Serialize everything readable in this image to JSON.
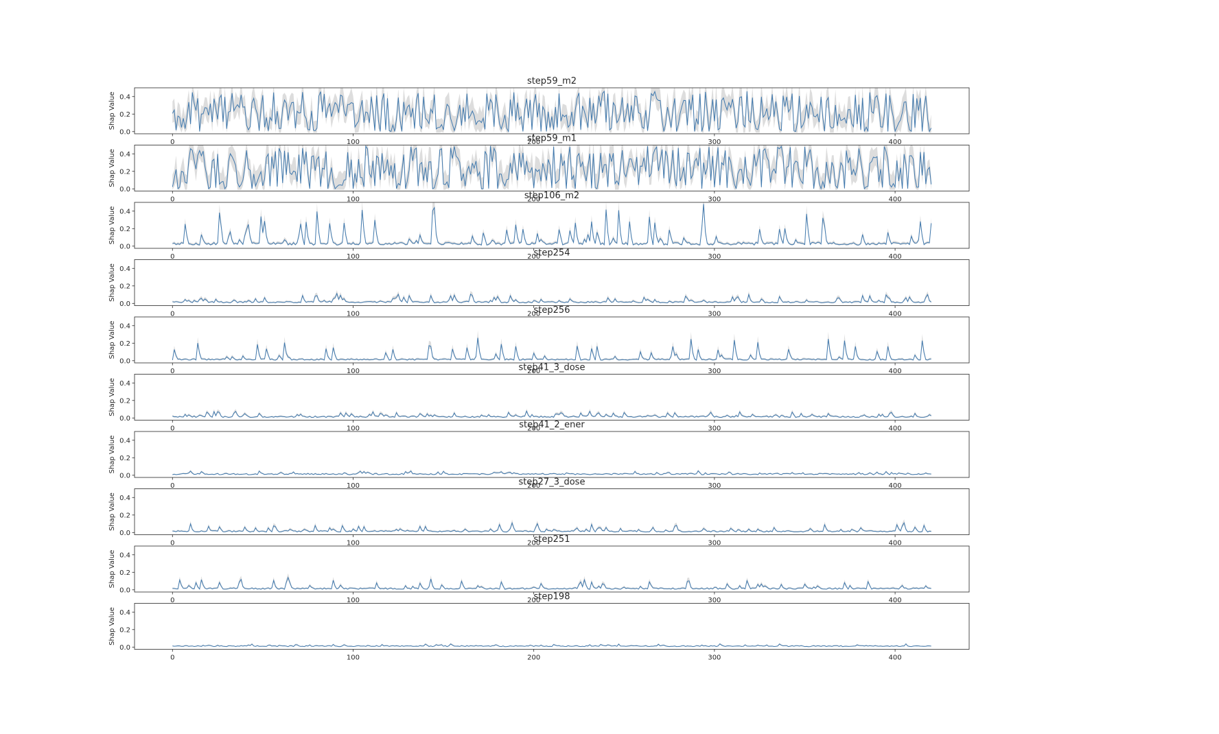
{
  "figure": {
    "background": "#ffffff",
    "shared_ylabel": "Shap Value",
    "layout_note": "10 vertically stacked line subplots; each subplot title overlaps the x tick labels of the subplot above"
  },
  "chart_data": [
    {
      "type": "line",
      "title": "step59_m2",
      "xlabel": "",
      "ylabel": "Shap Value",
      "x_tick_labels": [
        "0",
        "100",
        "200",
        "300",
        "400"
      ],
      "y_tick_labels": [
        "0.0",
        "0.2",
        "0.4"
      ],
      "x_ticks": [
        0,
        100,
        200,
        300,
        400
      ],
      "y_ticks": [
        0.0,
        0.2,
        0.4
      ],
      "xlim": [
        -21,
        441
      ],
      "ylim": [
        -0.025,
        0.5
      ],
      "n_points": 421,
      "line_color": "#4079ae",
      "band_color": "#d9d9d9",
      "grid": false,
      "legend": null,
      "observed": {
        "baseline": 0.0,
        "typical_level": 0.2,
        "max": 0.47,
        "band_half_width": 0.12,
        "character": "dense high-frequency oscillation touching 0 often"
      },
      "gen": {
        "mode": "dense",
        "amp": 0.47,
        "base": 0.0,
        "band": 0.105,
        "seed": 11
      }
    },
    {
      "type": "line",
      "title": "step59_m1",
      "xlabel": "",
      "ylabel": "Shap Value",
      "x_tick_labels": [
        "0",
        "100",
        "200",
        "300",
        "400"
      ],
      "y_tick_labels": [
        "0.0",
        "0.2",
        "0.4"
      ],
      "x_ticks": [
        0,
        100,
        200,
        300,
        400
      ],
      "y_ticks": [
        0.0,
        0.2,
        0.4
      ],
      "xlim": [
        -21,
        441
      ],
      "ylim": [
        -0.025,
        0.5
      ],
      "n_points": 421,
      "line_color": "#4079ae",
      "band_color": "#d9d9d9",
      "grid": false,
      "legend": null,
      "observed": {
        "baseline": 0.0,
        "typical_level": 0.2,
        "max": 0.5,
        "band_half_width": 0.12,
        "character": "dense high-frequency oscillation touching 0 often"
      },
      "gen": {
        "mode": "dense",
        "amp": 0.5,
        "base": 0.0,
        "band": 0.105,
        "seed": 23
      }
    },
    {
      "type": "line",
      "title": "step106_m2",
      "xlabel": "",
      "ylabel": "Shap Value",
      "x_tick_labels": [
        "0",
        "100",
        "200",
        "300",
        "400"
      ],
      "y_tick_labels": [
        "0.0",
        "0.2",
        "0.4"
      ],
      "x_ticks": [
        0,
        100,
        200,
        300,
        400
      ],
      "y_ticks": [
        0.0,
        0.2,
        0.4
      ],
      "xlim": [
        -21,
        441
      ],
      "ylim": [
        -0.025,
        0.5
      ],
      "n_points": 421,
      "line_color": "#4079ae",
      "band_color": "#d9d9d9",
      "grid": false,
      "legend": null,
      "observed": {
        "baseline": 0.03,
        "typical_level": 0.04,
        "max": 0.45,
        "band_half_width": 0.02,
        "character": "low baseline with frequent tall narrow spikes"
      },
      "gen": {
        "mode": "spike",
        "base": 0.028,
        "spike_prob": 0.17,
        "spike_lo": 0.04,
        "spike_hi": 0.4,
        "band": 0.01,
        "band_v": 0.22,
        "seed": 37
      }
    },
    {
      "type": "line",
      "title": "step254",
      "xlabel": "",
      "ylabel": "Shap Value",
      "x_tick_labels": [
        "0",
        "100",
        "200",
        "300",
        "400"
      ],
      "y_tick_labels": [
        "0.0",
        "0.2",
        "0.4"
      ],
      "x_ticks": [
        0,
        100,
        200,
        300,
        400
      ],
      "y_ticks": [
        0.0,
        0.2,
        0.4
      ],
      "xlim": [
        -21,
        441
      ],
      "ylim": [
        -0.025,
        0.5
      ],
      "n_points": 421,
      "line_color": "#4079ae",
      "band_color": "#d9d9d9",
      "grid": false,
      "legend": null,
      "observed": {
        "baseline": 0.015,
        "typical_level": 0.02,
        "max": 0.1,
        "band_half_width": 0.01,
        "character": "near-zero baseline with many small spikes"
      },
      "gen": {
        "mode": "spike",
        "base": 0.014,
        "spike_prob": 0.22,
        "spike_lo": 0.015,
        "spike_hi": 0.085,
        "band": 0.007,
        "band_v": 0.3,
        "seed": 41
      }
    },
    {
      "type": "line",
      "title": "step256",
      "xlabel": "",
      "ylabel": "Shap Value",
      "x_tick_labels": [
        "0",
        "100",
        "200",
        "300",
        "400"
      ],
      "y_tick_labels": [
        "0.0",
        "0.2",
        "0.4"
      ],
      "x_ticks": [
        0,
        100,
        200,
        300,
        400
      ],
      "y_ticks": [
        0.0,
        0.2,
        0.4
      ],
      "xlim": [
        -21,
        441
      ],
      "ylim": [
        -0.025,
        0.5
      ],
      "n_points": 421,
      "line_color": "#4079ae",
      "band_color": "#d9d9d9",
      "grid": false,
      "legend": null,
      "observed": {
        "baseline": 0.015,
        "typical_level": 0.02,
        "max": 0.27,
        "band_half_width": 0.01,
        "character": "near-zero baseline with sparse taller spikes"
      },
      "gen": {
        "mode": "spike",
        "base": 0.014,
        "spike_prob": 0.1,
        "spike_lo": 0.03,
        "spike_hi": 0.24,
        "band": 0.007,
        "band_v": 0.3,
        "seed": 53
      }
    },
    {
      "type": "line",
      "title": "step41_3_dose",
      "xlabel": "",
      "ylabel": "Shap Value",
      "x_tick_labels": [
        "0",
        "100",
        "200",
        "300",
        "400"
      ],
      "y_tick_labels": [
        "0.0",
        "0.2",
        "0.4"
      ],
      "x_ticks": [
        0,
        100,
        200,
        300,
        400
      ],
      "y_ticks": [
        0.0,
        0.2,
        0.4
      ],
      "xlim": [
        -21,
        441
      ],
      "ylim": [
        -0.025,
        0.5
      ],
      "n_points": 421,
      "line_color": "#4079ae",
      "band_color": "#d9d9d9",
      "grid": false,
      "legend": null,
      "observed": {
        "baseline": 0.015,
        "typical_level": 0.02,
        "max": 0.08,
        "band_half_width": 0.008,
        "character": "near-zero baseline with small frequent bumps"
      },
      "gen": {
        "mode": "spike",
        "base": 0.014,
        "spike_prob": 0.2,
        "spike_lo": 0.01,
        "spike_hi": 0.06,
        "band": 0.006,
        "band_v": 0.3,
        "seed": 67
      }
    },
    {
      "type": "line",
      "title": "step41_2_ener",
      "xlabel": "",
      "ylabel": "Shap Value",
      "x_tick_labels": [
        "0",
        "100",
        "200",
        "300",
        "400"
      ],
      "y_tick_labels": [
        "0.0",
        "0.2",
        "0.4"
      ],
      "x_ticks": [
        0,
        100,
        200,
        300,
        400
      ],
      "y_ticks": [
        0.0,
        0.2,
        0.4
      ],
      "xlim": [
        -21,
        441
      ],
      "ylim": [
        -0.025,
        0.5
      ],
      "n_points": 421,
      "line_color": "#4079ae",
      "band_color": "#d9d9d9",
      "grid": false,
      "legend": null,
      "observed": {
        "baseline": 0.013,
        "typical_level": 0.015,
        "max": 0.05,
        "band_half_width": 0.006,
        "character": "very flat near-zero line with tiny bumps"
      },
      "gen": {
        "mode": "spike",
        "base": 0.013,
        "spike_prob": 0.14,
        "spike_lo": 0.005,
        "spike_hi": 0.032,
        "band": 0.005,
        "band_v": 0.25,
        "seed": 79
      }
    },
    {
      "type": "line",
      "title": "step27_3_dose",
      "xlabel": "",
      "ylabel": "Shap Value",
      "x_tick_labels": [
        "0",
        "100",
        "200",
        "300",
        "400"
      ],
      "y_tick_labels": [
        "0.0",
        "0.2",
        "0.4"
      ],
      "x_ticks": [
        0,
        100,
        200,
        300,
        400
      ],
      "y_ticks": [
        0.0,
        0.2,
        0.4
      ],
      "xlim": [
        -21,
        441
      ],
      "ylim": [
        -0.025,
        0.5
      ],
      "n_points": 421,
      "line_color": "#4079ae",
      "band_color": "#d9d9d9",
      "grid": false,
      "legend": null,
      "observed": {
        "baseline": 0.015,
        "typical_level": 0.02,
        "max": 0.1,
        "band_half_width": 0.008,
        "character": "near-zero baseline with small spikes"
      },
      "gen": {
        "mode": "spike",
        "base": 0.014,
        "spike_prob": 0.16,
        "spike_lo": 0.015,
        "spike_hi": 0.08,
        "band": 0.006,
        "band_v": 0.3,
        "seed": 83
      }
    },
    {
      "type": "line",
      "title": "step251",
      "xlabel": "",
      "ylabel": "Shap Value",
      "x_tick_labels": [
        "0",
        "100",
        "200",
        "300",
        "400"
      ],
      "y_tick_labels": [
        "0.0",
        "0.2",
        "0.4"
      ],
      "x_ticks": [
        0,
        100,
        200,
        300,
        400
      ],
      "y_ticks": [
        0.0,
        0.2,
        0.4
      ],
      "xlim": [
        -21,
        441
      ],
      "ylim": [
        -0.025,
        0.5
      ],
      "n_points": 421,
      "line_color": "#4079ae",
      "band_color": "#d9d9d9",
      "grid": false,
      "legend": null,
      "observed": {
        "baseline": 0.015,
        "typical_level": 0.02,
        "max": 0.12,
        "band_half_width": 0.008,
        "character": "near-zero baseline with occasional spikes"
      },
      "gen": {
        "mode": "spike",
        "base": 0.014,
        "spike_prob": 0.13,
        "spike_lo": 0.018,
        "spike_hi": 0.1,
        "band": 0.006,
        "band_v": 0.3,
        "seed": 97
      }
    },
    {
      "type": "line",
      "title": "step198",
      "xlabel": "",
      "ylabel": "Shap Value",
      "x_tick_labels": [
        "0",
        "100",
        "200",
        "300",
        "400"
      ],
      "y_tick_labels": [
        "0.0",
        "0.2",
        "0.4"
      ],
      "x_ticks": [
        0,
        100,
        200,
        300,
        400
      ],
      "y_ticks": [
        0.0,
        0.2,
        0.4
      ],
      "xlim": [
        -21,
        441
      ],
      "ylim": [
        -0.025,
        0.5
      ],
      "n_points": 421,
      "line_color": "#4079ae",
      "band_color": "#d9d9d9",
      "grid": false,
      "legend": null,
      "observed": {
        "baseline": 0.012,
        "typical_level": 0.013,
        "max": 0.03,
        "band_half_width": 0.005,
        "character": "almost flat near-zero line with tiny wiggles"
      },
      "gen": {
        "mode": "spike",
        "base": 0.011,
        "spike_prob": 0.12,
        "spike_lo": 0.004,
        "spike_hi": 0.022,
        "band": 0.004,
        "band_v": 0.25,
        "seed": 113
      }
    }
  ]
}
